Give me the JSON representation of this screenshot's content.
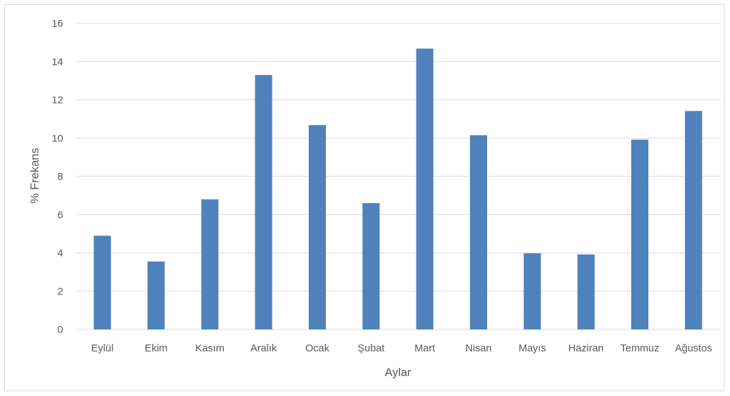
{
  "chart_data": {
    "type": "bar",
    "categories": [
      "Eylül",
      "Ekim",
      "Kasım",
      "Aralık",
      "Ocak",
      "Şubat",
      "Mart",
      "Nisan",
      "Mayıs",
      "Haziran",
      "Temmuz",
      "Ağustos"
    ],
    "values": [
      4.9,
      3.55,
      6.8,
      13.3,
      10.68,
      6.6,
      14.68,
      10.15,
      3.98,
      3.92,
      9.92,
      11.42
    ],
    "title": "",
    "xlabel": "Aylar",
    "ylabel": "% Frekans",
    "ylim": [
      0,
      16
    ],
    "yticks": [
      "0",
      "2",
      "4",
      "6",
      "8",
      "10",
      "12",
      "14",
      "16"
    ],
    "grid": true,
    "bar_color": "#4f81bd",
    "grid_color": "#d9d9d9"
  }
}
